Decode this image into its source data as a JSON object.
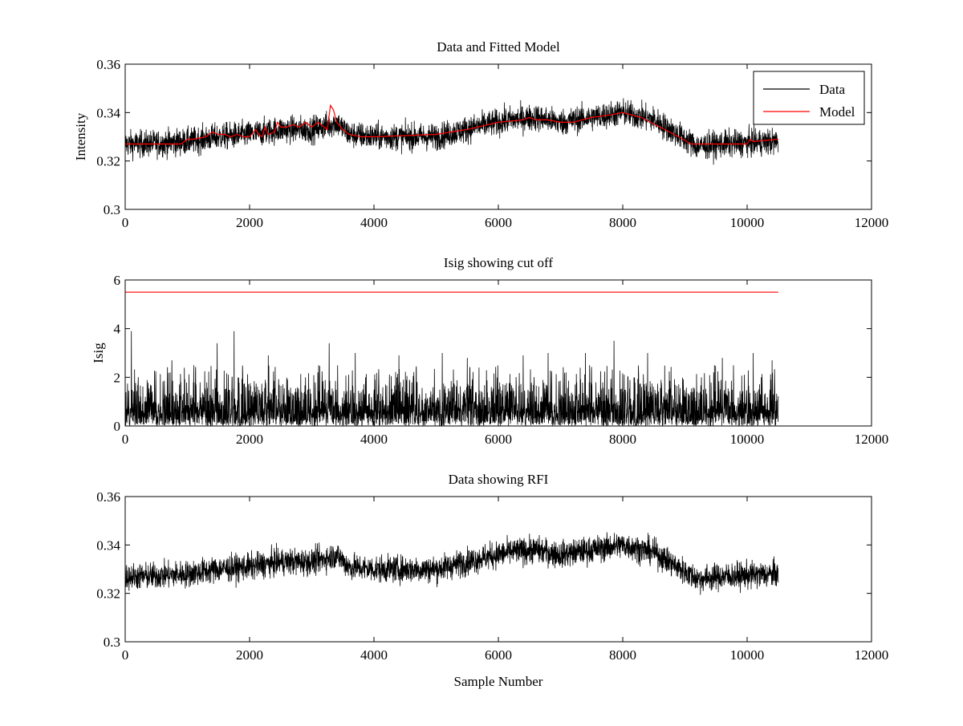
{
  "figure": {
    "background": "#ffffff"
  },
  "chart_data": [
    {
      "type": "line",
      "title": "Data and Fitted Model",
      "xlabel": "",
      "ylabel": "Intensity",
      "xlim": [
        0,
        12000
      ],
      "ylim": [
        0.3,
        0.36
      ],
      "xticks": [
        0,
        2000,
        4000,
        6000,
        8000,
        10000,
        12000
      ],
      "xtick_labels": [
        "0",
        "2000",
        "4000",
        "6000",
        "8000",
        "10000",
        "12000"
      ],
      "yticks": [
        0.3,
        0.32,
        0.34,
        0.36
      ],
      "ytick_labels": [
        "0.3",
        "0.32",
        "0.34",
        "0.36"
      ],
      "grid": false,
      "legend": {
        "position": "top-right",
        "entries": [
          "Data",
          "Model"
        ]
      },
      "series": [
        {
          "name": "Data",
          "color": "#000000",
          "kind": "noisy",
          "x_range": [
            0,
            10500
          ],
          "noise_halfwidth": 0.0065,
          "baseline": [
            [
              0,
              0.327
            ],
            [
              300,
              0.327
            ],
            [
              1000,
              0.328
            ],
            [
              1500,
              0.33
            ],
            [
              2000,
              0.331
            ],
            [
              2500,
              0.333
            ],
            [
              3000,
              0.333
            ],
            [
              3300,
              0.335
            ],
            [
              3400,
              0.336
            ],
            [
              3600,
              0.331
            ],
            [
              4000,
              0.33
            ],
            [
              5000,
              0.33
            ],
            [
              5800,
              0.335
            ],
            [
              6200,
              0.337
            ],
            [
              6600,
              0.338
            ],
            [
              7000,
              0.336
            ],
            [
              7500,
              0.338
            ],
            [
              8000,
              0.34
            ],
            [
              8500,
              0.337
            ],
            [
              9000,
              0.329
            ],
            [
              9200,
              0.326
            ],
            [
              9600,
              0.327
            ],
            [
              10500,
              0.328
            ]
          ]
        },
        {
          "name": "Model",
          "color": "#ff0000",
          "kind": "line",
          "x": [
            0,
            200,
            500,
            900,
            1000,
            1100,
            1300,
            1400,
            1500,
            1600,
            1700,
            1800,
            1900,
            2000,
            2100,
            2150,
            2200,
            2250,
            2300,
            2400,
            2450,
            2500,
            2600,
            2700,
            2800,
            2900,
            3000,
            3100,
            3200,
            3250,
            3300,
            3350,
            3400,
            3500,
            3600,
            3800,
            4000,
            5000,
            5500,
            6000,
            6400,
            6500,
            6600,
            6800,
            7000,
            7200,
            7500,
            7800,
            8000,
            8300,
            8600,
            8900,
            9100,
            9300,
            9600,
            10000,
            10050,
            10100,
            10500
          ],
          "y": [
            0.327,
            0.327,
            0.327,
            0.327,
            0.329,
            0.329,
            0.33,
            0.332,
            0.331,
            0.331,
            0.33,
            0.331,
            0.33,
            0.33,
            0.333,
            0.331,
            0.33,
            0.334,
            0.331,
            0.332,
            0.336,
            0.334,
            0.334,
            0.335,
            0.334,
            0.336,
            0.334,
            0.336,
            0.334,
            0.333,
            0.343,
            0.341,
            0.336,
            0.333,
            0.331,
            0.33,
            0.33,
            0.331,
            0.333,
            0.336,
            0.337,
            0.338,
            0.337,
            0.337,
            0.336,
            0.336,
            0.338,
            0.339,
            0.34,
            0.338,
            0.334,
            0.33,
            0.327,
            0.327,
            0.327,
            0.327,
            0.329,
            0.328,
            0.329
          ]
        }
      ]
    },
    {
      "type": "line",
      "title": "Isig showing cut off",
      "xlabel": "",
      "ylabel": "Isig",
      "xlim": [
        0,
        12000
      ],
      "ylim": [
        0,
        6
      ],
      "xticks": [
        0,
        2000,
        4000,
        6000,
        8000,
        10000,
        12000
      ],
      "xtick_labels": [
        "0",
        "2000",
        "4000",
        "6000",
        "8000",
        "10000",
        "12000"
      ],
      "yticks": [
        0,
        2,
        4,
        6
      ],
      "ytick_labels": [
        "0",
        "2",
        "4",
        "6"
      ],
      "grid": false,
      "series": [
        {
          "color": "#000000",
          "kind": "spiky",
          "x_range": [
            0,
            10500
          ],
          "dense_max": 1.3,
          "spikes": [
            [
              100,
              3.9
            ],
            [
              750,
              2.7
            ],
            [
              1480,
              3.4
            ],
            [
              1750,
              3.9
            ],
            [
              2300,
              2.9
            ],
            [
              3280,
              3.4
            ],
            [
              3700,
              3.0
            ],
            [
              4400,
              2.9
            ],
            [
              5100,
              3.0
            ],
            [
              5500,
              2.8
            ],
            [
              6400,
              2.9
            ],
            [
              6800,
              3.0
            ],
            [
              7400,
              3.0
            ],
            [
              7860,
              3.5
            ],
            [
              8400,
              3.0
            ],
            [
              9600,
              2.8
            ],
            [
              10100,
              3.0
            ],
            [
              10400,
              2.7
            ]
          ]
        },
        {
          "color": "#ff0000",
          "kind": "line",
          "x": [
            0,
            10500
          ],
          "y": [
            5.5,
            5.5
          ]
        }
      ]
    },
    {
      "type": "line",
      "title": "Data showing RFI",
      "xlabel": "Sample Number",
      "ylabel": "",
      "xlim": [
        0,
        12000
      ],
      "ylim": [
        0.3,
        0.36
      ],
      "xticks": [
        0,
        2000,
        4000,
        6000,
        8000,
        10000,
        12000
      ],
      "xtick_labels": [
        "0",
        "2000",
        "4000",
        "6000",
        "8000",
        "10000",
        "12000"
      ],
      "yticks": [
        0.3,
        0.32,
        0.34,
        0.36
      ],
      "ytick_labels": [
        "0.3",
        "0.32",
        "0.34",
        "0.36"
      ],
      "grid": false,
      "series": [
        {
          "color": "#000000",
          "kind": "noisy",
          "x_range": [
            0,
            10500
          ],
          "noise_halfwidth": 0.0065,
          "baseline": [
            [
              0,
              0.327
            ],
            [
              300,
              0.327
            ],
            [
              1000,
              0.328
            ],
            [
              1500,
              0.33
            ],
            [
              2000,
              0.331
            ],
            [
              2500,
              0.333
            ],
            [
              3000,
              0.333
            ],
            [
              3300,
              0.335
            ],
            [
              3400,
              0.336
            ],
            [
              3600,
              0.331
            ],
            [
              4000,
              0.33
            ],
            [
              5000,
              0.33
            ],
            [
              5800,
              0.335
            ],
            [
              6200,
              0.337
            ],
            [
              6600,
              0.338
            ],
            [
              7000,
              0.336
            ],
            [
              7500,
              0.338
            ],
            [
              8000,
              0.34
            ],
            [
              8500,
              0.337
            ],
            [
              9000,
              0.329
            ],
            [
              9200,
              0.326
            ],
            [
              9600,
              0.327
            ],
            [
              10500,
              0.328
            ]
          ]
        }
      ]
    }
  ]
}
